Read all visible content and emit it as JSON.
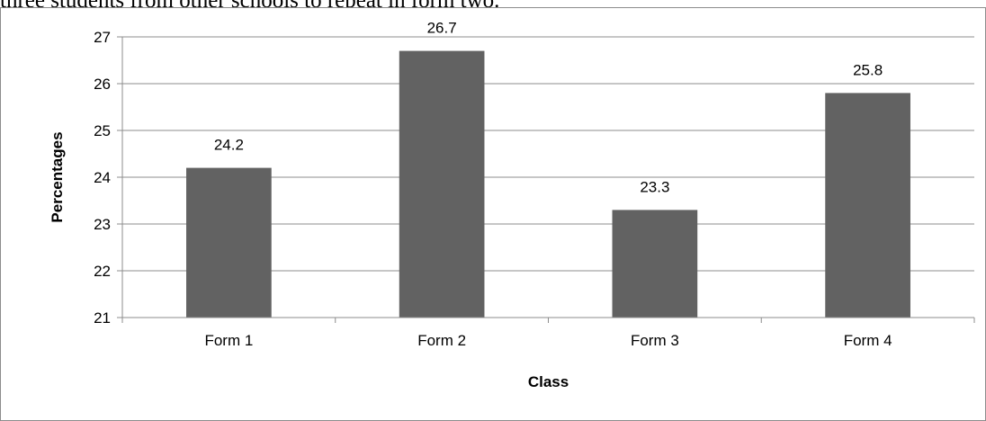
{
  "document": {
    "caption_fragment": "three students from other schools to repeat in form two."
  },
  "chart_data": {
    "type": "bar",
    "categories": [
      "Form 1",
      "Form 2",
      "Form 3",
      "Form 4"
    ],
    "values": [
      24.2,
      26.7,
      23.3,
      25.8
    ],
    "data_labels": [
      "24.2",
      "26.7",
      "23.3",
      "25.8"
    ],
    "xlabel": "Class",
    "ylabel": "Percentages",
    "ylim": [
      21,
      27
    ],
    "yticks": [
      21,
      22,
      23,
      24,
      25,
      26,
      27
    ],
    "grid": true,
    "legend": "none",
    "bar_color": "#626262",
    "grid_color": "#8c8c8c"
  }
}
